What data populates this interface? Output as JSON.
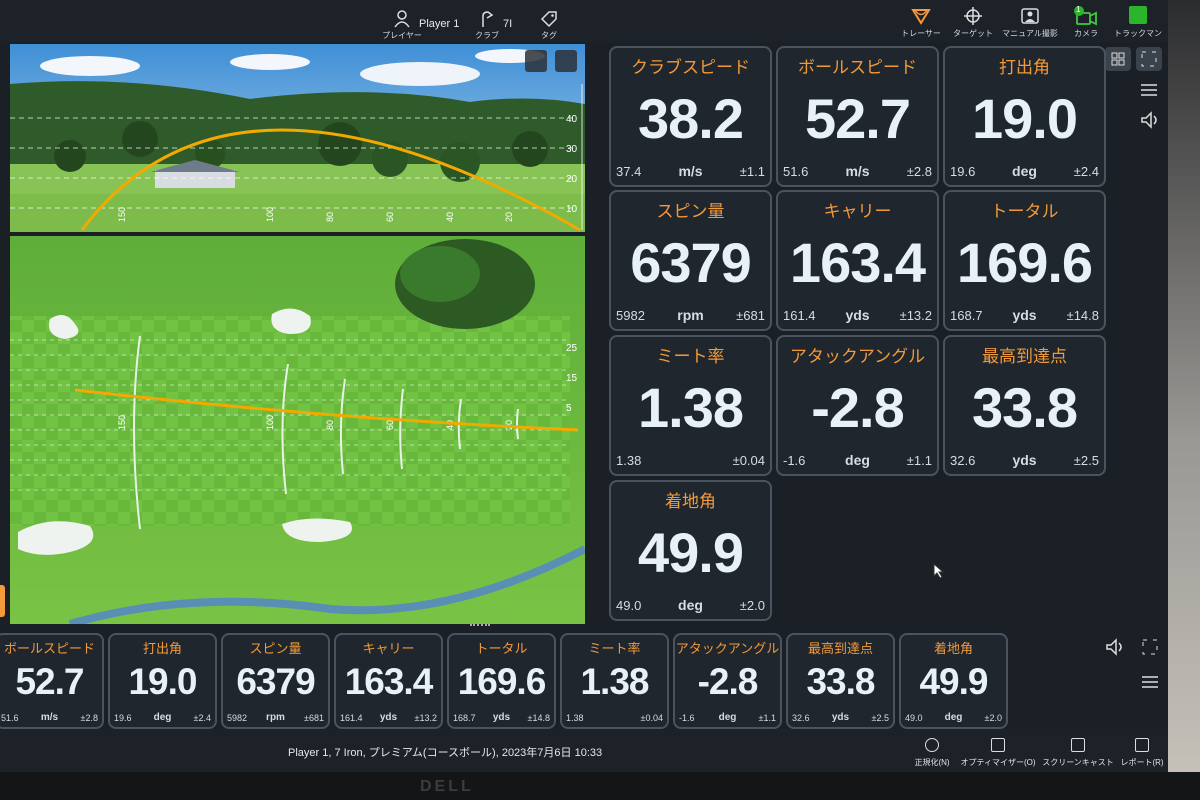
{
  "toolbar": {
    "player": {
      "name": "Player 1",
      "label": "プレイヤー"
    },
    "club": {
      "name": "7I",
      "label": "クラブ"
    },
    "tag": {
      "label": "タグ"
    },
    "tools": [
      {
        "label": "トレーサー"
      },
      {
        "label": "ターゲット"
      },
      {
        "label": "マニュアル撮影"
      },
      {
        "label": "カメラ",
        "badge": "1"
      },
      {
        "label": "トラックマン"
      }
    ]
  },
  "side_view": {
    "height_labels": [
      "40",
      "30",
      "20",
      "10"
    ],
    "distance_labels": [
      "150",
      "100",
      "80",
      "60",
      "40",
      "20"
    ]
  },
  "top_view": {
    "offline_labels": [
      "25",
      "15",
      "5"
    ],
    "distance_labels": [
      "150",
      "100",
      "80",
      "60",
      "40",
      "20"
    ]
  },
  "tiles": [
    {
      "label": "クラブスピード",
      "value": "38.2",
      "average": "37.4",
      "unit": "m/s",
      "spread": "±1.1"
    },
    {
      "label": "ボールスピード",
      "value": "52.7",
      "average": "51.6",
      "unit": "m/s",
      "spread": "±2.8"
    },
    {
      "label": "打出角",
      "value": "19.0",
      "average": "19.6",
      "unit": "deg",
      "spread": "±2.4"
    },
    {
      "label": "スピン量",
      "value": "6379",
      "average": "5982",
      "unit": "rpm",
      "spread": "±681"
    },
    {
      "label": "キャリー",
      "value": "163.4",
      "average": "161.4",
      "unit": "yds",
      "spread": "±13.2"
    },
    {
      "label": "トータル",
      "value": "169.6",
      "average": "168.7",
      "unit": "yds",
      "spread": "±14.8"
    },
    {
      "label": "ミート率",
      "value": "1.38",
      "average": "1.38",
      "spread": "±0.04"
    },
    {
      "label": "アタックアングル",
      "value": "-2.8",
      "average": "-1.6",
      "unit": "deg",
      "spread": "±1.1"
    },
    {
      "label": "最高到達点",
      "value": "33.8",
      "average": "32.6",
      "unit": "yds",
      "spread": "±2.5"
    },
    {
      "label": "着地角",
      "value": "49.9",
      "average": "49.0",
      "unit": "deg",
      "spread": "±2.0"
    }
  ],
  "strip": [
    {
      "label": "ボールスピード",
      "value": "52.7",
      "average": "51.6",
      "unit": "m/s",
      "spread": "±2.8"
    },
    {
      "label": "打出角",
      "value": "19.0",
      "average": "19.6",
      "unit": "deg",
      "spread": "±2.4"
    },
    {
      "label": "スピン量",
      "value": "6379",
      "average": "5982",
      "unit": "rpm",
      "spread": "±681"
    },
    {
      "label": "キャリー",
      "value": "163.4",
      "average": "161.4",
      "unit": "yds",
      "spread": "±13.2"
    },
    {
      "label": "トータル",
      "value": "169.6",
      "average": "168.7",
      "unit": "yds",
      "spread": "±14.8"
    },
    {
      "label": "ミート率",
      "value": "1.38",
      "average": "1.38",
      "spread": "±0.04"
    },
    {
      "label": "アタックアングル",
      "value": "-2.8",
      "average": "-1.6",
      "unit": "deg",
      "spread": "±1.1"
    },
    {
      "label": "最高到達点",
      "value": "33.8",
      "average": "32.6",
      "unit": "yds",
      "spread": "±2.5"
    },
    {
      "label": "着地角",
      "value": "49.9",
      "average": "49.0",
      "unit": "deg",
      "spread": "±2.0"
    }
  ],
  "status": "Player 1, 7 Iron, プレミアム(コースボール), 2023年7月6日 10:33",
  "actions": [
    {
      "label": "正規化(N)"
    },
    {
      "label": "オプティマイザー(O)"
    },
    {
      "label": "スクリーンキャスト"
    },
    {
      "label": "レポート(R)"
    }
  ],
  "monitor_brand": "DELL"
}
